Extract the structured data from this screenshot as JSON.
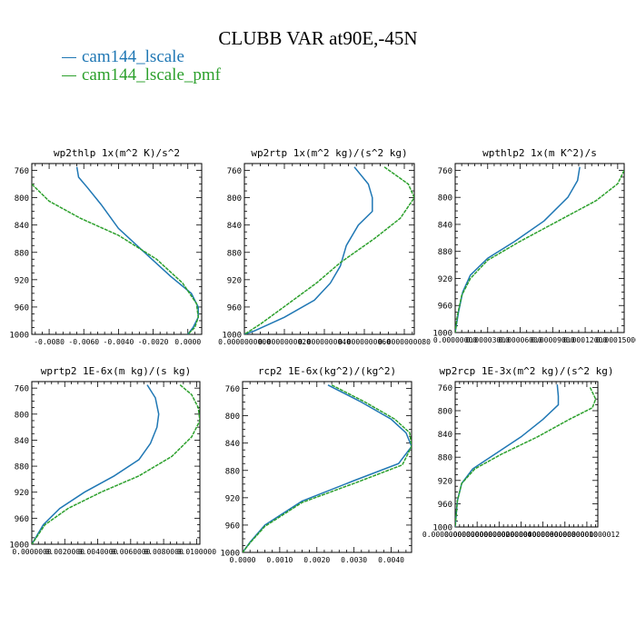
{
  "title": "CLUBB VAR at90E,-45N",
  "legend": [
    {
      "label": "cam144_lscale",
      "color": "#1f77b4"
    },
    {
      "label": "cam144_lscale_pmf",
      "color": "#2ca02c"
    }
  ],
  "chart_data": [
    {
      "type": "line",
      "title": "wp2thlp  1x(m^2 K)/s^2",
      "xlim": [
        -0.009,
        0.0008
      ],
      "ylim": [
        1000,
        750
      ],
      "yticks": [
        760,
        800,
        840,
        880,
        920,
        960,
        1000
      ],
      "xticks": [
        -0.008,
        -0.006,
        -0.004,
        -0.002,
        0.0
      ],
      "xticklabels": [
        "-0.0080",
        "-0.0060",
        "-0.0040",
        "-0.0020",
        "0.0000"
      ],
      "series": [
        {
          "name": "cam144_lscale",
          "x": [
            -0.0064,
            -0.0063,
            -0.0058,
            -0.005,
            -0.004,
            -0.0025,
            -0.001,
            0.0002,
            0.0006,
            0.0006,
            0.0003,
            0.0
          ],
          "y": [
            755,
            770,
            785,
            810,
            845,
            880,
            915,
            940,
            960,
            975,
            990,
            1000
          ]
        },
        {
          "name": "cam144_lscale_pmf",
          "x": [
            -0.009,
            -0.008,
            -0.0062,
            -0.004,
            -0.0018,
            -0.0003,
            0.0005,
            0.0006,
            0.0004,
            0.0
          ],
          "y": [
            780,
            805,
            830,
            855,
            890,
            925,
            955,
            975,
            990,
            1000
          ]
        }
      ]
    },
    {
      "type": "line",
      "title": "wp2rtp  1x(m^2 kg)/(s^2 kg)",
      "xlim": [
        0.0,
        8.5e-09
      ],
      "ylim": [
        1000,
        750
      ],
      "yticks": [
        760,
        800,
        840,
        880,
        920,
        960,
        1000
      ],
      "xticks": [
        0.0,
        2e-09,
        4e-09,
        6e-09,
        8e-09
      ],
      "xticklabels": [
        "0.0000000000",
        "0.0000000020",
        "0.0000000040",
        "0.0000000060",
        "0.0000000080"
      ],
      "series": [
        {
          "name": "cam144_lscale",
          "x": [
            5.5e-09,
            6.2e-09,
            6.4e-09,
            6.4e-09,
            5.7e-09,
            5.1e-09,
            4.8e-09,
            4.3e-09,
            3.5e-09,
            2e-09,
            5e-10,
            0.0
          ],
          "y": [
            755,
            780,
            800,
            820,
            840,
            870,
            900,
            925,
            950,
            975,
            995,
            1000
          ]
        },
        {
          "name": "cam144_lscale_pmf",
          "x": [
            7e-09,
            8.2e-09,
            8.5e-09,
            7.8e-09,
            6.5e-09,
            4.8e-09,
            3.6e-09,
            2.2e-09,
            8e-10,
            0.0
          ],
          "y": [
            755,
            780,
            800,
            830,
            860,
            895,
            925,
            955,
            985,
            1000
          ]
        }
      ]
    },
    {
      "type": "line",
      "title": "wpthlp2  1x(m K^2)/s",
      "xlim": [
        0.0,
        0.000156
      ],
      "ylim": [
        1000,
        750
      ],
      "yticks": [
        760,
        800,
        840,
        880,
        920,
        960,
        1000
      ],
      "xticks": [
        0.0,
        3e-05,
        6e-05,
        9e-05,
        0.00012,
        0.00015
      ],
      "xticklabels": [
        "0.00000000",
        "0.00003000",
        "0.00006000",
        "0.00009000",
        "0.00012000",
        "0.00015000"
      ],
      "series": [
        {
          "name": "cam144_lscale",
          "x": [
            0.000115,
            0.000113,
            0.000104,
            8.2e-05,
            5.5e-05,
            3e-05,
            1.4e-05,
            7e-06,
            3e-06,
            0.0
          ],
          "y": [
            755,
            775,
            800,
            835,
            865,
            890,
            915,
            940,
            970,
            1000
          ]
        },
        {
          "name": "cam144_lscale_pmf",
          "x": [
            0.000156,
            0.00015,
            0.00013,
            9.5e-05,
            6e-05,
            3e-05,
            1.4e-05,
            6e-06,
            2e-06,
            0.0
          ],
          "y": [
            760,
            780,
            805,
            835,
            865,
            893,
            920,
            945,
            975,
            1000
          ]
        }
      ]
    },
    {
      "type": "line",
      "title": "wprtp2  1E-6x(m kg)/(s kg)",
      "xlim": [
        0.0,
        0.0102
      ],
      "ylim": [
        1000,
        750
      ],
      "yticks": [
        760,
        800,
        840,
        880,
        920,
        960,
        1000
      ],
      "xticks": [
        0.0,
        0.002,
        0.004,
        0.006,
        0.008,
        0.01
      ],
      "xticklabels": [
        "0.0000000",
        "0.0020000",
        "0.0040000",
        "0.0060000",
        "0.0080000",
        "0.0100000"
      ],
      "series": [
        {
          "name": "cam144_lscale",
          "x": [
            0.007,
            0.0075,
            0.0077,
            0.0076,
            0.0072,
            0.0065,
            0.005,
            0.0032,
            0.0017,
            0.0007,
            0.0
          ],
          "y": [
            755,
            775,
            800,
            820,
            845,
            870,
            895,
            920,
            945,
            970,
            1000
          ]
        },
        {
          "name": "cam144_lscale_pmf",
          "x": [
            0.009,
            0.0097,
            0.0101,
            0.0102,
            0.0097,
            0.0085,
            0.0065,
            0.0042,
            0.0022,
            0.0008,
            0.0
          ],
          "y": [
            755,
            770,
            790,
            810,
            835,
            865,
            895,
            920,
            945,
            970,
            1000
          ]
        }
      ]
    },
    {
      "type": "line",
      "title": "rcp2  1E-6x(kg^2)/(kg^2)",
      "xlim": [
        0.0,
        0.00455
      ],
      "ylim": [
        1000,
        750
      ],
      "yticks": [
        760,
        800,
        840,
        880,
        920,
        960,
        1000
      ],
      "xticks": [
        0.0,
        0.001,
        0.002,
        0.003,
        0.004
      ],
      "xticklabels": [
        "0.0000",
        "0.0010",
        "0.0020",
        "0.0030",
        "0.0040"
      ],
      "series": [
        {
          "name": "cam144_lscale",
          "x": [
            0.0023,
            0.0032,
            0.004,
            0.0044,
            0.00455,
            0.0042,
            0.003,
            0.0016,
            0.0006,
            0.0002,
            0.0
          ],
          "y": [
            755,
            780,
            805,
            825,
            845,
            870,
            895,
            925,
            960,
            985,
            1000
          ]
        },
        {
          "name": "cam144_lscale_pmf",
          "x": [
            0.0024,
            0.0033,
            0.0041,
            0.0045,
            0.00455,
            0.0043,
            0.0031,
            0.0016,
            0.0006,
            0.0002,
            0.0
          ],
          "y": [
            755,
            780,
            805,
            825,
            845,
            872,
            897,
            927,
            962,
            986,
            1000
          ]
        }
      ]
    },
    {
      "type": "line",
      "title": "wp2rcp  1E-3x(m^2 kg)/(s^2 kg)",
      "xlim": [
        0.0,
        1.3e-12
      ],
      "ylim": [
        1000,
        750
      ],
      "yticks": [
        760,
        800,
        840,
        880,
        920,
        960,
        1000
      ],
      "xticks": [
        0.0,
        2e-13,
        4e-13,
        6e-13,
        8e-13,
        1e-12,
        1.2e-12
      ],
      "xticklabels": [
        "0.0000000000000",
        "0.0000000000002",
        "0.0000000000004",
        "0.0000000000006",
        "0.0000000000008",
        "0.0000000000010",
        "0.0000000000012"
      ],
      "series": [
        {
          "name": "cam144_lscale",
          "x": [
            9.3e-13,
            9.4e-13,
            9.4e-13,
            8e-13,
            6e-13,
            3.6e-13,
            1.6e-13,
            6e-14,
            2e-14,
            0.0
          ],
          "y": [
            755,
            775,
            790,
            815,
            845,
            875,
            900,
            925,
            955,
            1000
          ]
        },
        {
          "name": "cam144_lscale_pmf",
          "x": [
            1.23e-12,
            1.28e-12,
            1.25e-12,
            1.04e-12,
            7.5e-13,
            4.2e-13,
            1.8e-13,
            6e-14,
            2e-14,
            0.0
          ],
          "y": [
            760,
            780,
            795,
            815,
            845,
            875,
            900,
            925,
            955,
            1000
          ]
        }
      ]
    }
  ]
}
